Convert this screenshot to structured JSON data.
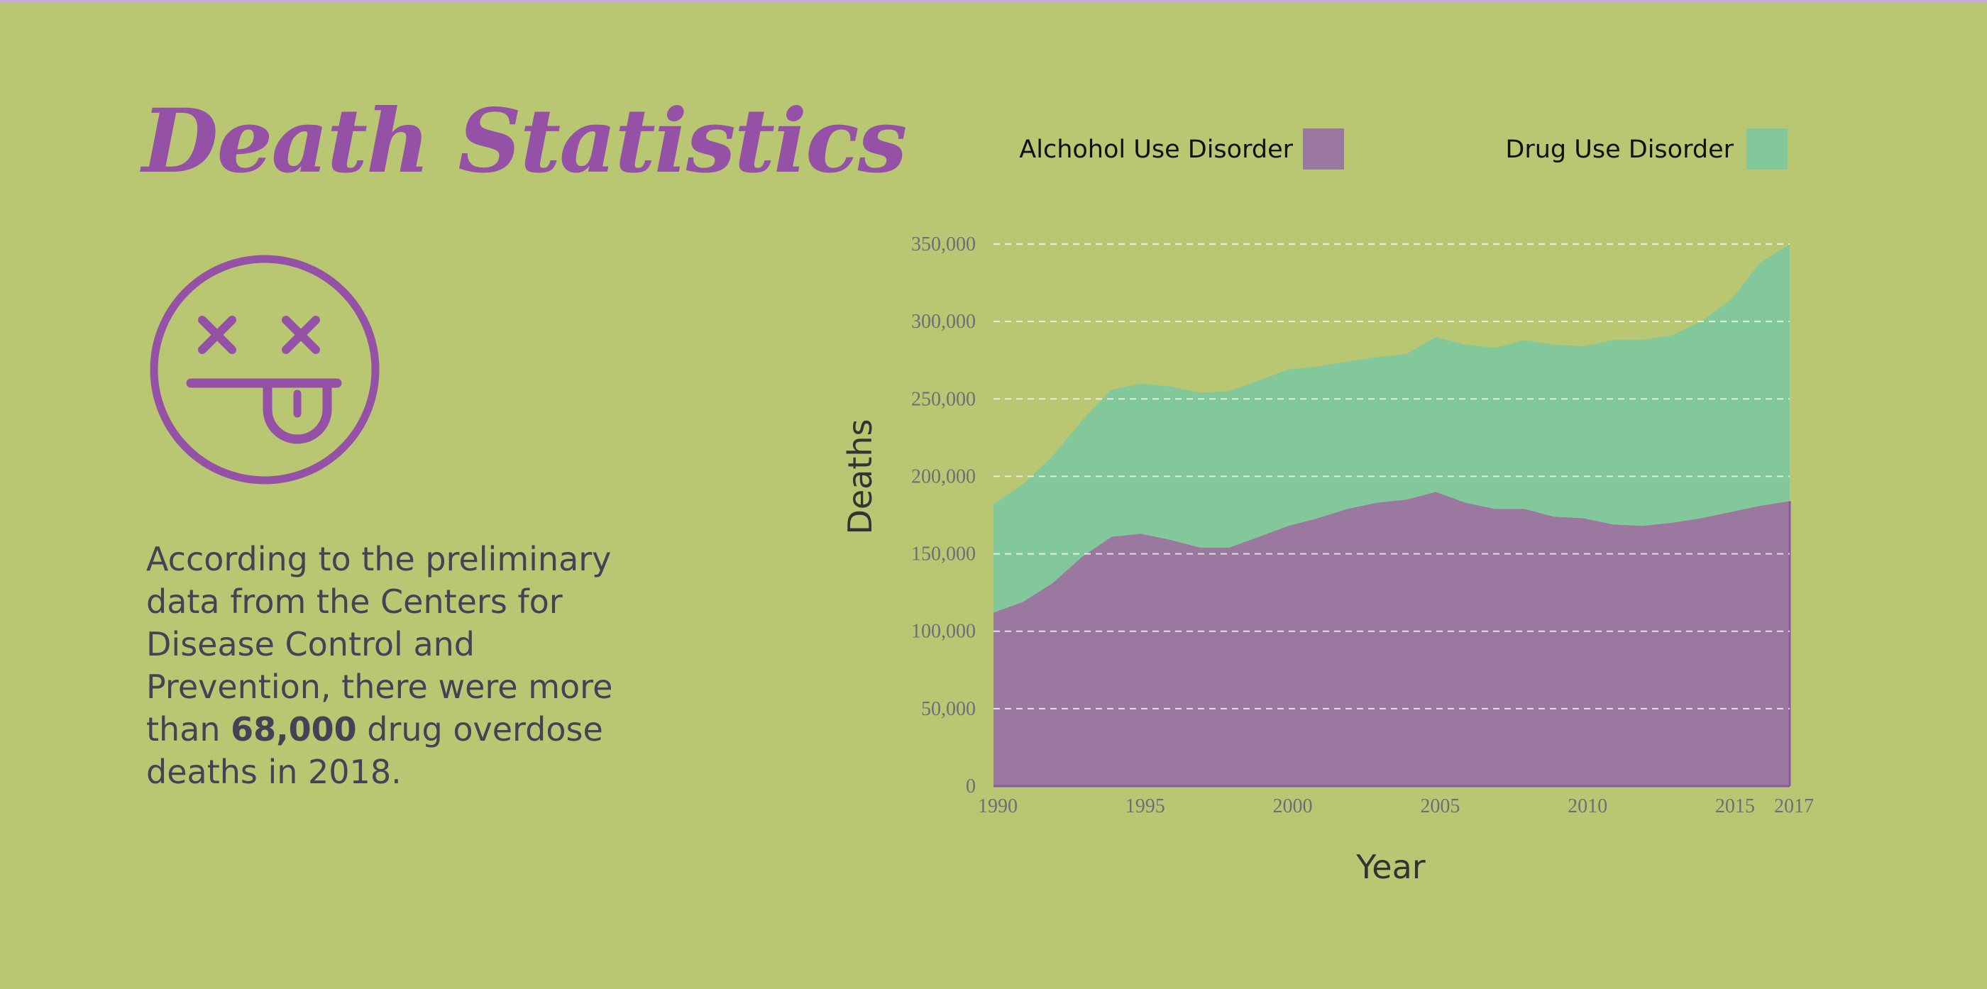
{
  "page": {
    "title": "Death Statistics",
    "body_pre": "According to the preliminary data from the Centers for Disease Control and Prevention, there were more than ",
    "body_bold": "68,000",
    "body_post": " drug overdose deaths in 2018.",
    "icon": "dizzy-face-tongue-icon",
    "colors": {
      "background": "#b9c773",
      "title": "#9451a6",
      "alcohol": "#9a78a0",
      "drug": "#82c89b",
      "body_text": "#454256"
    }
  },
  "chart_data": {
    "type": "area",
    "stacked": true,
    "title": "",
    "xlabel": "Year",
    "ylabel": "Deaths",
    "xlim": [
      1990,
      2017
    ],
    "ylim": [
      0,
      350000
    ],
    "x_ticks": [
      1990,
      1995,
      2000,
      2005,
      2010,
      2015,
      2017
    ],
    "x_tick_labels": [
      "1990",
      "1995",
      "2000",
      "2005",
      "2010",
      "2015",
      "2017"
    ],
    "y_ticks": [
      0,
      50000,
      100000,
      150000,
      200000,
      250000,
      300000,
      350000
    ],
    "y_tick_labels": [
      "0",
      "50,000",
      "100,000",
      "150,000",
      "200,000",
      "250,000",
      "300,000",
      "350,000"
    ],
    "grid": "horizontal dashed",
    "legend": "top",
    "x": [
      1990,
      1991,
      1992,
      1993,
      1994,
      1995,
      1996,
      1997,
      1998,
      1999,
      2000,
      2001,
      2002,
      2003,
      2004,
      2005,
      2006,
      2007,
      2008,
      2009,
      2010,
      2011,
      2012,
      2013,
      2014,
      2015,
      2016,
      2017
    ],
    "series": [
      {
        "name": "Alchohol Use Disorder",
        "color": "#9a78a0",
        "values": [
          112000,
          119000,
          131000,
          148000,
          161000,
          163000,
          159000,
          154000,
          154000,
          161000,
          168000,
          173000,
          179000,
          183000,
          185000,
          190000,
          183000,
          179000,
          179000,
          174000,
          173000,
          169000,
          168000,
          170000,
          173000,
          177000,
          181000,
          184000
        ]
      },
      {
        "name": "Drug Use Disorder",
        "color": "#82c89b",
        "values": [
          70000,
          76000,
          82000,
          88000,
          95000,
          97000,
          99000,
          100000,
          101000,
          101000,
          101000,
          98000,
          95000,
          94000,
          94000,
          100000,
          102000,
          104000,
          109000,
          111000,
          111000,
          119000,
          120000,
          121000,
          127000,
          137000,
          157000,
          166000
        ]
      }
    ]
  }
}
